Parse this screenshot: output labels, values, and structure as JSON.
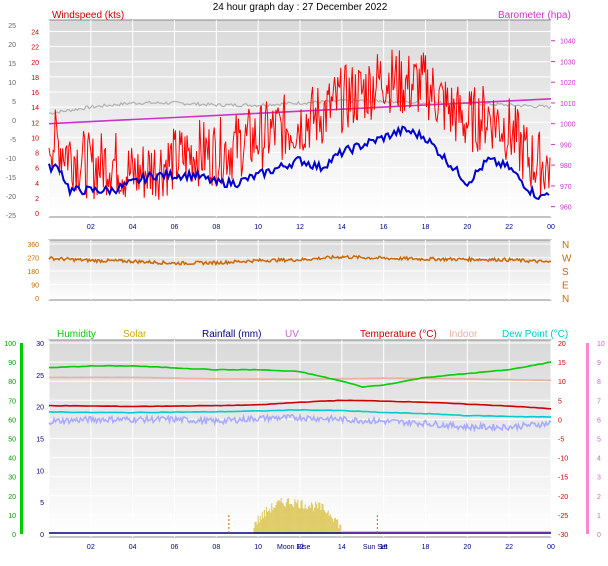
{
  "title": "24 hour graph day : 27 December 2022",
  "x_ticks": [
    "02",
    "04",
    "06",
    "08",
    "10",
    "12",
    "14",
    "16",
    "18",
    "20",
    "22",
    "00"
  ],
  "colors": {
    "windspeed": "#ff0000",
    "gust": "#ff0000",
    "avg_wind": "#0000cc",
    "barometer": "#cc33cc",
    "grey_line": "#b0b0b0",
    "direction": "#cc6600",
    "humidity": "#00cc00",
    "solar": "#ccaa00",
    "rainfall": "#000080",
    "uv": "#cc66cc",
    "temperature": "#cc0000",
    "indoor": "#e8b0a0",
    "dewpoint": "#00cccc",
    "feels": "#aaaaff"
  },
  "chart_data": [
    {
      "type": "line",
      "title": "",
      "left_axis_label": "Windspeed (kts)",
      "right_axis_label": "Barometer (hpa)",
      "left_ticks_outer": [
        "25",
        "20",
        "15",
        "10",
        "5",
        "0",
        "-5",
        "-10",
        "-15",
        "-20",
        "-25"
      ],
      "left_ticks": [
        "24",
        "22",
        "20",
        "18",
        "16",
        "14",
        "12",
        "10",
        "8",
        "6",
        "4",
        "2",
        "0"
      ],
      "right_ticks": [
        "1040",
        "1030",
        "1020",
        "1010",
        "1000",
        "990",
        "980",
        "970",
        "960"
      ],
      "y_left_range": [
        0,
        25
      ],
      "y_right_range": [
        955,
        1050
      ],
      "series": [
        {
          "name": "Windspeed (kts)",
          "key": "wind_gust",
          "x": [
            0,
            1,
            2,
            3,
            4,
            5,
            6,
            7,
            8,
            9,
            10,
            11,
            12,
            13,
            14,
            15,
            16,
            17,
            18,
            19,
            20,
            21,
            22,
            23,
            24
          ],
          "values": [
            10,
            8,
            6,
            7,
            5,
            6,
            7,
            8,
            8,
            9,
            10,
            11,
            12,
            13,
            15,
            16,
            18,
            17,
            17,
            14,
            12,
            13,
            11,
            7,
            6
          ]
        },
        {
          "name": "",
          "key": "wind_avg",
          "x": [
            0,
            0.5,
            1,
            2,
            3,
            4,
            5,
            6,
            7,
            8,
            9,
            10,
            11,
            12,
            13,
            14,
            15,
            16,
            17,
            18,
            19,
            20,
            21,
            22,
            23,
            23.5,
            24
          ],
          "values": [
            6,
            6,
            3,
            3,
            3,
            4,
            5,
            5,
            5,
            4,
            4,
            5,
            6,
            7,
            6,
            8,
            9,
            10,
            11,
            10,
            7,
            4,
            7,
            6,
            3,
            2,
            3
          ]
        },
        {
          "name": "Barometer (hpa)",
          "key": "barometer",
          "x": [
            0,
            2,
            4,
            6,
            8,
            10,
            12,
            14,
            16,
            18,
            20,
            22,
            24
          ],
          "values": [
            1000,
            1001,
            1002,
            1003,
            1004,
            1005,
            1006,
            1007,
            1008,
            1009,
            1010,
            1011,
            1012
          ]
        },
        {
          "name": "",
          "key": "grey",
          "x": [
            0,
            2,
            4,
            6,
            8,
            10,
            12,
            14,
            16,
            18,
            20,
            22,
            24
          ],
          "values": [
            1005,
            1008,
            1010,
            1010,
            1009,
            1009,
            1010,
            1011,
            1011,
            1010,
            1010,
            1009,
            1008
          ]
        }
      ]
    },
    {
      "type": "scatter",
      "title": "",
      "left_ticks": [
        "360",
        "270",
        "180",
        "90",
        "0"
      ],
      "right_ticks": [
        "N",
        "W",
        "S",
        "E",
        "N"
      ],
      "y_range": [
        0,
        360
      ],
      "series": [
        {
          "name": "",
          "key": "direction",
          "x": [
            0,
            2,
            4,
            6,
            8,
            10,
            12,
            14,
            16,
            18,
            20,
            22,
            24
          ],
          "values": [
            265,
            250,
            245,
            232,
            235,
            250,
            255,
            275,
            265,
            260,
            258,
            255,
            238
          ]
        }
      ]
    },
    {
      "type": "line",
      "title": "",
      "legend": [
        "Humidity",
        "Solar",
        "Rainfall (mm)",
        "UV",
        "Temperature (°C)",
        "Indoor",
        "Dew Point (°C)"
      ],
      "hum_ticks": [
        "100",
        "90",
        "80",
        "70",
        "60",
        "50",
        "40",
        "30",
        "20",
        "10",
        "0"
      ],
      "rain_ticks": [
        "30",
        "25",
        "20",
        "15",
        "10",
        "5",
        "0"
      ],
      "temp_ticks": [
        "20",
        "15",
        "10",
        "5",
        "0",
        "-5",
        "-10",
        "-15",
        "-20",
        "-25",
        "-30"
      ],
      "uv_ticks": [
        "10",
        "9",
        "8",
        "7",
        "6",
        "5",
        "4",
        "3",
        "2",
        "1",
        "0"
      ],
      "x_annotations": [
        "Moon Rise",
        "Sun Set"
      ],
      "series": [
        {
          "name": "Humidity",
          "key": "humidity",
          "x": [
            0,
            2,
            4,
            6,
            8,
            10,
            12,
            14,
            15,
            16,
            18,
            20,
            22,
            24
          ],
          "values": [
            87,
            88,
            88,
            87,
            86,
            86,
            85,
            80,
            77,
            78,
            82,
            84,
            86,
            90
          ]
        },
        {
          "name": "Indoor",
          "key": "indoor",
          "x": [
            0,
            4,
            8,
            12,
            16,
            20,
            24
          ],
          "values": [
            11,
            11,
            10.6,
            10.5,
            10.8,
            10.6,
            10.2
          ]
        },
        {
          "name": "Temperature (°C)",
          "key": "temperature",
          "x": [
            0,
            2,
            4,
            6,
            8,
            10,
            12,
            14,
            16,
            18,
            20,
            22,
            24
          ],
          "values": [
            3.6,
            3.5,
            3.4,
            3.5,
            3.6,
            3.8,
            4.5,
            5,
            4.8,
            4.5,
            4,
            3.5,
            2.8
          ]
        },
        {
          "name": "Dew Point (°C)",
          "key": "dewpoint",
          "x": [
            0,
            2,
            4,
            6,
            8,
            10,
            12,
            14,
            16,
            18,
            20,
            22,
            24
          ],
          "values": [
            2,
            1.8,
            1.8,
            1.9,
            2,
            2.2,
            2.5,
            2.3,
            1.8,
            1.5,
            1,
            0.8,
            0.6
          ]
        },
        {
          "name": "",
          "key": "feels",
          "x": [
            0,
            2,
            4,
            6,
            8,
            10,
            12,
            14,
            16,
            18,
            20,
            22,
            24
          ],
          "values": [
            -0.5,
            0,
            0,
            0,
            -0.5,
            0.3,
            0.5,
            0,
            -0.5,
            -1,
            -2,
            -2,
            -1
          ]
        },
        {
          "name": "Solar",
          "key": "solar",
          "x": [
            9.8,
            10.5,
            11,
            11.5,
            12,
            12.5,
            13,
            13.5,
            14
          ],
          "values": [
            0.5,
            1.2,
            1.5,
            1.6,
            1.5,
            1.4,
            1.3,
            1.0,
            0.3
          ]
        }
      ]
    }
  ]
}
